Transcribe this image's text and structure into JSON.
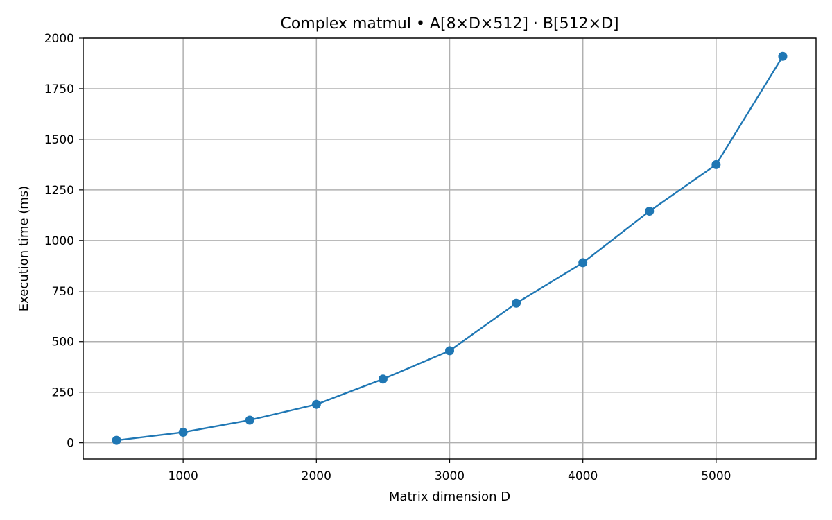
{
  "chart_data": {
    "type": "line",
    "title": "Complex matmul • A[8×D×512] · B[512×D]",
    "xlabel": "Matrix dimension D",
    "ylabel": "Execution time (ms)",
    "xlim": [
      250,
      5750
    ],
    "ylim": [
      -80,
      2000
    ],
    "xticks": [
      1000,
      2000,
      3000,
      4000,
      5000
    ],
    "yticks": [
      0,
      250,
      500,
      750,
      1000,
      1250,
      1500,
      1750,
      2000
    ],
    "grid": true,
    "series": [
      {
        "color": "#1f77b4",
        "marker": "circle",
        "x": [
          500,
          1000,
          1500,
          2000,
          2500,
          3000,
          3500,
          4000,
          4500,
          5000,
          5500
        ],
        "y": [
          12,
          52,
          112,
          190,
          315,
          455,
          690,
          890,
          1145,
          1375,
          1910
        ]
      }
    ]
  }
}
